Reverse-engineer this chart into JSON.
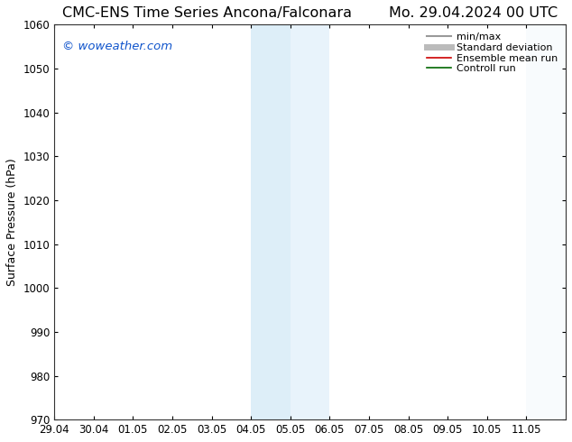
{
  "title_left": "CMC-ENS Time Series Ancona/Falconara",
  "title_right": "Mo. 29.04.2024 00 UTC",
  "ylabel": "Surface Pressure (hPa)",
  "xlim": [
    0,
    13
  ],
  "ylim": [
    970,
    1060
  ],
  "yticks": [
    970,
    980,
    990,
    1000,
    1010,
    1020,
    1030,
    1040,
    1050,
    1060
  ],
  "xtick_labels": [
    "29.04",
    "30.04",
    "01.05",
    "02.05",
    "03.05",
    "04.05",
    "05.05",
    "06.05",
    "07.05",
    "08.05",
    "09.05",
    "10.05",
    "11.05"
  ],
  "xtick_positions": [
    0,
    1,
    2,
    3,
    4,
    5,
    6,
    7,
    8,
    9,
    10,
    11,
    12
  ],
  "shaded_region_1": [
    5,
    6
  ],
  "shaded_region_2": [
    6,
    7
  ],
  "shade_color_1": "#ddeef8",
  "shade_color_2": "#e8f3fb",
  "right_shade_color": "#eef5fc",
  "watermark": "© woweather.com",
  "watermark_color": "#1155cc",
  "bg_color": "#ffffff",
  "plot_bg_color": "#ffffff",
  "legend_items": [
    {
      "label": "min/max",
      "color": "#999999",
      "lw": 1.5,
      "ls": "-"
    },
    {
      "label": "Standard deviation",
      "color": "#bbbbbb",
      "lw": 5,
      "ls": "-"
    },
    {
      "label": "Ensemble mean run",
      "color": "#cc0000",
      "lw": 1.2,
      "ls": "-"
    },
    {
      "label": "Controll run",
      "color": "#006600",
      "lw": 1.2,
      "ls": "-"
    }
  ],
  "title_fontsize": 11.5,
  "ylabel_fontsize": 9,
  "tick_fontsize": 8.5,
  "legend_fontsize": 8,
  "watermark_fontsize": 9.5
}
